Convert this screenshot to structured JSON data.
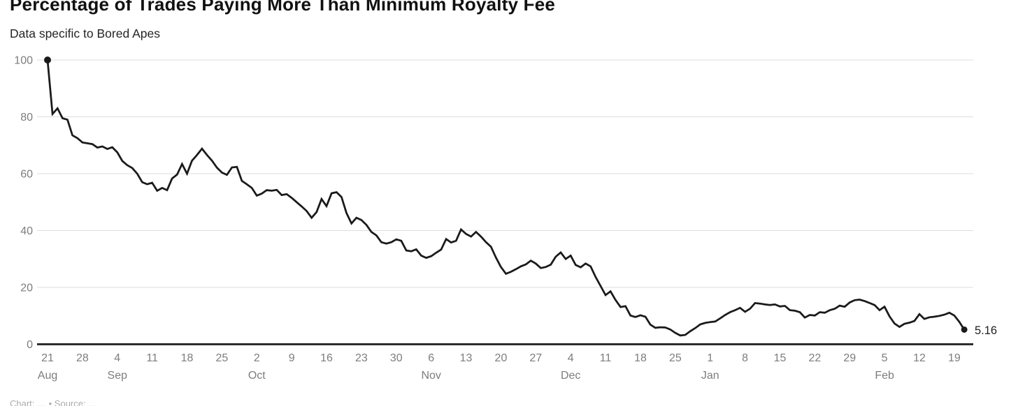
{
  "header": {
    "title": "Percentage of Trades Paying More Than Minimum Royalty Fee",
    "subtitle": "Data specific to Bored Apes"
  },
  "footer": {
    "credit_partial": "Chart: … • Source: …"
  },
  "colors": {
    "line": "#1a1a1a",
    "marker": "#1a1a1a",
    "grid": "#dedede",
    "axis": "#2e2e2e",
    "tick_label": "#7d7d7d",
    "title": "#111111",
    "subtitle": "#252525",
    "end_label": "#1f1f1f"
  },
  "chart_data": {
    "type": "line",
    "title": "Percentage of Trades Paying More Than Minimum Royalty Fee",
    "subtitle": "Data specific to Bored Apes",
    "xlabel": "",
    "ylabel": "",
    "x_unit": "day",
    "x_start": "Aug 21",
    "x_end": "Feb 21",
    "ylim": [
      0,
      100
    ],
    "yticks": [
      0,
      20,
      40,
      60,
      80,
      100
    ],
    "grid": "horizontal",
    "legend": "none",
    "start_marker": true,
    "end_marker": true,
    "end_label": "5.16",
    "last_value": 5.16,
    "xticks": [
      {
        "day": 0,
        "label": "21",
        "month": "Aug"
      },
      {
        "day": 7,
        "label": "28",
        "month": ""
      },
      {
        "day": 14,
        "label": "4",
        "month": "Sep"
      },
      {
        "day": 21,
        "label": "11",
        "month": ""
      },
      {
        "day": 28,
        "label": "18",
        "month": ""
      },
      {
        "day": 35,
        "label": "25",
        "month": ""
      },
      {
        "day": 42,
        "label": "2",
        "month": "Oct"
      },
      {
        "day": 49,
        "label": "9",
        "month": ""
      },
      {
        "day": 56,
        "label": "16",
        "month": ""
      },
      {
        "day": 63,
        "label": "23",
        "month": ""
      },
      {
        "day": 70,
        "label": "30",
        "month": ""
      },
      {
        "day": 77,
        "label": "6",
        "month": "Nov"
      },
      {
        "day": 84,
        "label": "13",
        "month": ""
      },
      {
        "day": 91,
        "label": "20",
        "month": ""
      },
      {
        "day": 98,
        "label": "27",
        "month": ""
      },
      {
        "day": 105,
        "label": "4",
        "month": "Dec"
      },
      {
        "day": 112,
        "label": "11",
        "month": ""
      },
      {
        "day": 119,
        "label": "18",
        "month": ""
      },
      {
        "day": 126,
        "label": "25",
        "month": ""
      },
      {
        "day": 133,
        "label": "1",
        "month": "Jan"
      },
      {
        "day": 140,
        "label": "8",
        "month": ""
      },
      {
        "day": 147,
        "label": "15",
        "month": ""
      },
      {
        "day": 154,
        "label": "22",
        "month": ""
      },
      {
        "day": 161,
        "label": "29",
        "month": ""
      },
      {
        "day": 168,
        "label": "5",
        "month": "Feb"
      },
      {
        "day": 175,
        "label": "12",
        "month": ""
      },
      {
        "day": 182,
        "label": "19",
        "month": ""
      }
    ],
    "series": [
      {
        "name": "Percent of trades paying more than minimum royalty fee",
        "values": [
          100,
          81,
          83,
          79.5,
          79,
          73.5,
          72.5,
          71,
          70.7,
          70.4,
          69.2,
          69.6,
          68.7,
          69.3,
          67.5,
          64.5,
          63.0,
          62.0,
          60.0,
          57.0,
          56.3,
          56.8,
          54.0,
          55.0,
          54.2,
          58.3,
          59.7,
          63.4,
          60.0,
          64.6,
          66.6,
          68.8,
          66.6,
          64.6,
          62.1,
          60.4,
          59.6,
          62.2,
          62.4,
          57.5,
          56.3,
          55.0,
          52.3,
          53.0,
          54.2,
          54.0,
          54.3,
          52.5,
          52.8,
          51.5,
          50.0,
          48.5,
          46.9,
          44.5,
          46.5,
          51.1,
          48.6,
          53.1,
          53.5,
          51.8,
          46.2,
          42.5,
          44.5,
          43.7,
          42.0,
          39.5,
          38.3,
          35.9,
          35.4,
          35.9,
          36.9,
          36.4,
          33.0,
          32.7,
          33.4,
          31.2,
          30.4,
          31.0,
          32.2,
          33.3,
          37.0,
          35.8,
          36.4,
          40.4,
          38.8,
          37.9,
          39.5,
          37.9,
          35.9,
          34.3,
          30.5,
          27.2,
          24.8,
          25.5,
          26.4,
          27.4,
          28.1,
          29.4,
          28.4,
          26.8,
          27.2,
          28.0,
          30.8,
          32.3,
          30.0,
          31.2,
          27.9,
          27.1,
          28.4,
          27.4,
          23.7,
          20.5,
          17.3,
          18.6,
          15.6,
          13.1,
          13.4,
          10.1,
          9.6,
          10.2,
          9.7,
          6.9,
          5.8,
          6.0,
          5.9,
          5.2,
          4.0,
          3.1,
          3.3,
          4.6,
          5.7,
          7.0,
          7.5,
          7.8,
          8.0,
          9.1,
          10.3,
          11.3,
          12.0,
          12.8,
          11.4,
          12.5,
          14.5,
          14.3,
          14.0,
          13.8,
          14.0,
          13.3,
          13.5,
          12.0,
          11.8,
          11.3,
          9.4,
          10.3,
          10.1,
          11.3,
          11.1,
          12.0,
          12.5,
          13.6,
          13.2,
          14.7,
          15.5,
          15.7,
          15.2,
          14.5,
          13.8,
          12.0,
          13.2,
          9.8,
          7.3,
          6.1,
          7.2,
          7.6,
          8.2,
          10.6,
          8.9,
          9.5,
          9.7,
          10.0,
          10.4,
          11.1,
          10.1,
          7.9,
          5.16
        ]
      }
    ]
  }
}
